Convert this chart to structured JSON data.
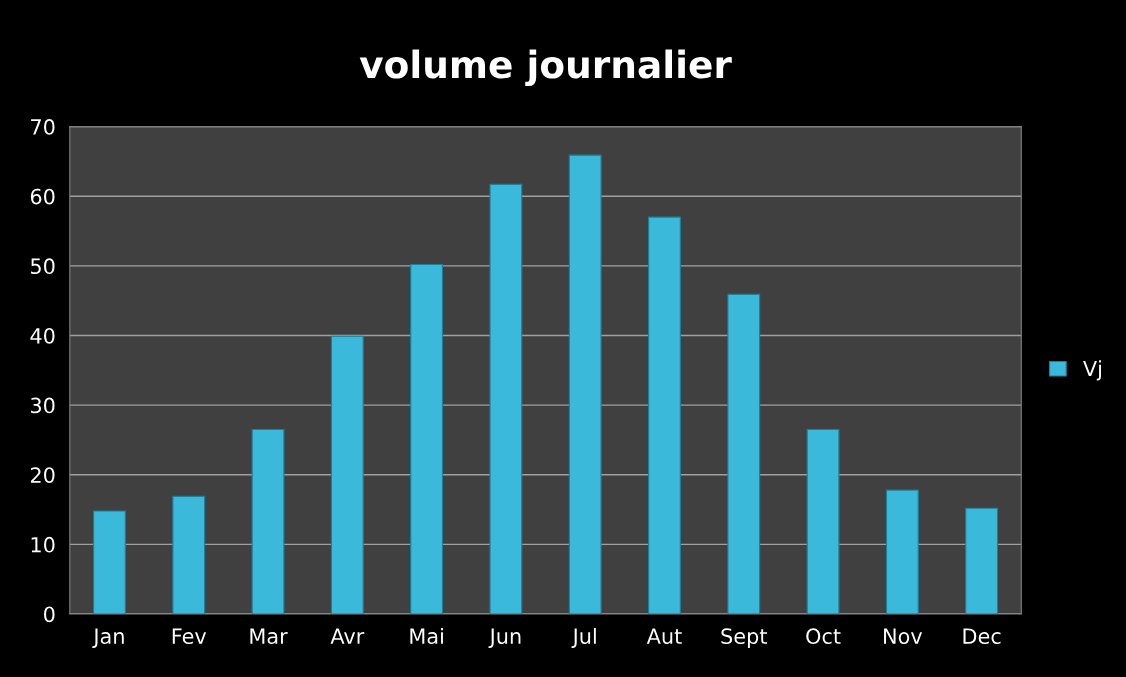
{
  "chart_data": {
    "type": "bar",
    "title": "volume journalier",
    "categories": [
      "Jan",
      "Fev",
      "Mar",
      "Avr",
      "Mai",
      "Jun",
      "Jul",
      "Aut",
      "Sept",
      "Oct",
      "Nov",
      "Dec"
    ],
    "series": [
      {
        "name": "Vj",
        "color": "#3bb9da",
        "values": [
          14.8,
          16.9,
          26.5,
          39.9,
          50.2,
          61.7,
          65.9,
          57.0,
          45.9,
          26.5,
          17.8,
          15.2
        ]
      }
    ],
    "ylim": [
      0,
      70
    ],
    "yticks": [
      0,
      10,
      20,
      30,
      40,
      50,
      60,
      70
    ],
    "grid": "y",
    "legend": "right"
  }
}
